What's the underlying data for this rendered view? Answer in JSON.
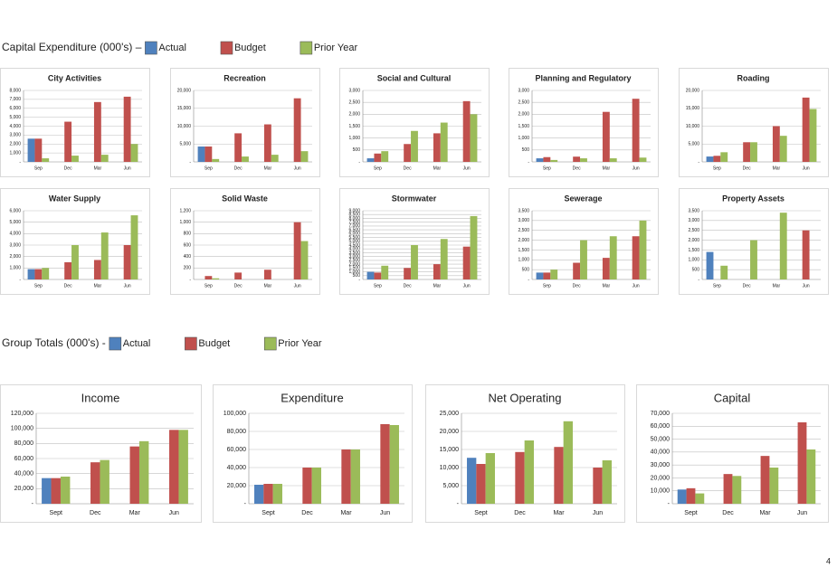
{
  "sections": [
    {
      "title": "Capital Expenditure (000's) –",
      "legend": [
        {
          "name": "Actual",
          "color": "#4f81bd"
        },
        {
          "name": "Budget",
          "color": "#c0504d"
        },
        {
          "name": "Prior Year",
          "color": "#9bbb59"
        }
      ]
    },
    {
      "title": "Group Totals (000's) -",
      "legend": [
        {
          "name": "Actual",
          "color": "#4f81bd"
        },
        {
          "name": "Budget",
          "color": "#c0504d"
        },
        {
          "name": "Prior Year",
          "color": "#9bbb59"
        }
      ]
    }
  ],
  "page_number": "4",
  "chart_data": [
    {
      "type": "bar",
      "title": "City Activities",
      "categories": [
        "Sep",
        "Dec",
        "Mar",
        "Jun"
      ],
      "ylim": [
        0,
        8000
      ],
      "yticks": [
        {
          "value": 0,
          "label": "-"
        },
        {
          "value": 1000,
          "label": "1,000"
        },
        {
          "value": 2000,
          "label": "2,000"
        },
        {
          "value": 3000,
          "label": "3,000"
        },
        {
          "value": 4000,
          "label": "4,000"
        },
        {
          "value": 5000,
          "label": "5,000"
        },
        {
          "value": 6000,
          "label": "6,000"
        },
        {
          "value": 7000,
          "label": "7,000"
        },
        {
          "value": 8000,
          "label": "8,000"
        }
      ],
      "series": [
        {
          "values": [
            2600,
            null,
            null,
            null
          ]
        },
        {
          "values": [
            2600,
            4500,
            6700,
            7300
          ]
        },
        {
          "values": [
            400,
            700,
            800,
            2000
          ]
        }
      ]
    },
    {
      "type": "bar",
      "title": "Recreation",
      "categories": [
        "Sep",
        "Dec",
        "Mar",
        "Jun"
      ],
      "ylim": [
        0,
        20000
      ],
      "yticks": [
        {
          "value": 0,
          "label": "-"
        },
        {
          "value": 5000,
          "label": "5,000"
        },
        {
          "value": 10000,
          "label": "10,000"
        },
        {
          "value": 15000,
          "label": "15,000"
        },
        {
          "value": 20000,
          "label": "20,000"
        }
      ],
      "series": [
        {
          "values": [
            4300,
            null,
            null,
            null
          ]
        },
        {
          "values": [
            4300,
            8000,
            10500,
            17800
          ]
        },
        {
          "values": [
            800,
            1500,
            2000,
            3000
          ]
        }
      ]
    },
    {
      "type": "bar",
      "title": "Social and Cultural",
      "categories": [
        "Sep",
        "Dec",
        "Mar",
        "Jun"
      ],
      "ylim": [
        0,
        3000
      ],
      "yticks": [
        {
          "value": 0,
          "label": "-"
        },
        500,
        {
          "value": 1000,
          "label": "1,000"
        },
        {
          "value": 1500,
          "label": "1,500"
        },
        {
          "value": 2000,
          "label": "2,000"
        },
        {
          "value": 2500,
          "label": "2,500"
        },
        {
          "value": 3000,
          "label": "3,000"
        }
      ],
      "series": [
        {
          "values": [
            150,
            null,
            null,
            null
          ]
        },
        {
          "values": [
            350,
            750,
            1200,
            2550
          ]
        },
        {
          "values": [
            450,
            1300,
            1650,
            2000
          ]
        }
      ]
    },
    {
      "type": "bar",
      "title": "Planning and Regulatory",
      "categories": [
        "Sep",
        "Dec",
        "Mar",
        "Jun"
      ],
      "ylim": [
        0,
        3000
      ],
      "yticks": [
        {
          "value": 0,
          "label": "-"
        },
        500,
        {
          "value": 1000,
          "label": "1,000"
        },
        {
          "value": 1500,
          "label": "1,500"
        },
        {
          "value": 2000,
          "label": "2,000"
        },
        {
          "value": 2500,
          "label": "2,500"
        },
        {
          "value": 3000,
          "label": "3,000"
        }
      ],
      "series": [
        {
          "values": [
            150,
            null,
            null,
            null
          ]
        },
        {
          "values": [
            200,
            220,
            2100,
            2650
          ]
        },
        {
          "values": [
            80,
            150,
            150,
            180
          ]
        }
      ]
    },
    {
      "type": "bar",
      "title": "Roading",
      "categories": [
        "Sep",
        "Dec",
        "Mar",
        "Jun"
      ],
      "ylim": [
        0,
        20000
      ],
      "yticks": [
        {
          "value": 0,
          "label": "-"
        },
        {
          "value": 5000,
          "label": "5,000"
        },
        {
          "value": 10000,
          "label": "10,000"
        },
        {
          "value": 15000,
          "label": "15,000"
        },
        {
          "value": 20000,
          "label": "20,000"
        }
      ],
      "series": [
        {
          "values": [
            1500,
            null,
            null,
            null
          ]
        },
        {
          "values": [
            1700,
            5500,
            10000,
            18000
          ]
        },
        {
          "values": [
            2700,
            5500,
            7300,
            14800
          ]
        }
      ]
    },
    {
      "type": "bar",
      "title": "Water Supply",
      "categories": [
        "Sep",
        "Dec",
        "Mar",
        "Jun"
      ],
      "ylim": [
        0,
        6000
      ],
      "yticks": [
        {
          "value": 0,
          "label": "-"
        },
        {
          "value": 1000,
          "label": "1,000"
        },
        {
          "value": 2000,
          "label": "2,000"
        },
        {
          "value": 3000,
          "label": "3,000"
        },
        {
          "value": 4000,
          "label": "4,000"
        },
        {
          "value": 5000,
          "label": "5,000"
        },
        {
          "value": 6000,
          "label": "6,000"
        }
      ],
      "series": [
        {
          "values": [
            900,
            null,
            null,
            null
          ]
        },
        {
          "values": [
            900,
            1500,
            1700,
            3000
          ]
        },
        {
          "values": [
            1000,
            3000,
            4100,
            5600
          ]
        }
      ]
    },
    {
      "type": "bar",
      "title": "Solid Waste",
      "categories": [
        "Sep",
        "Dec",
        "Mar",
        "Jun"
      ],
      "ylim": [
        0,
        1200
      ],
      "yticks": [
        {
          "value": 0,
          "label": "-"
        },
        200,
        400,
        600,
        800,
        {
          "value": 1000,
          "label": "1,000"
        },
        {
          "value": 1200,
          "label": "1,200"
        }
      ],
      "series": [
        {
          "values": [
            null,
            null,
            null,
            null
          ]
        },
        {
          "values": [
            60,
            120,
            170,
            1000
          ]
        },
        {
          "values": [
            20,
            null,
            null,
            670
          ]
        }
      ]
    },
    {
      "type": "bar",
      "title": "Stormwater",
      "categories": [
        "Sep",
        "Dec",
        "Mar",
        "Jun"
      ],
      "ylim": [
        0,
        9000
      ],
      "yticks": [
        {
          "value": 0,
          "label": "-"
        },
        500,
        {
          "value": 1000,
          "label": "1,000"
        },
        {
          "value": 1500,
          "label": "1,500"
        },
        {
          "value": 2000,
          "label": "2,000"
        },
        {
          "value": 2500,
          "label": "2,500"
        },
        {
          "value": 3000,
          "label": "3,000"
        },
        {
          "value": 3500,
          "label": "3,500"
        },
        {
          "value": 4000,
          "label": "4,000"
        },
        {
          "value": 4500,
          "label": "4,500"
        },
        {
          "value": 5000,
          "label": "5,000"
        },
        {
          "value": 5500,
          "label": "5,500"
        },
        {
          "value": 6000,
          "label": "6,000"
        },
        {
          "value": 6500,
          "label": "6,500"
        },
        {
          "value": 7000,
          "label": "7,000"
        },
        {
          "value": 7500,
          "label": "7,500"
        },
        {
          "value": 8000,
          "label": "8,000"
        },
        {
          "value": 8500,
          "label": "8,500"
        },
        {
          "value": 9000,
          "label": "9,000"
        }
      ],
      "series": [
        {
          "values": [
            1000,
            null,
            null,
            null
          ]
        },
        {
          "values": [
            900,
            1500,
            2000,
            4300
          ]
        },
        {
          "values": [
            1800,
            4500,
            5300,
            8300
          ]
        }
      ]
    },
    {
      "type": "bar",
      "title": "Sewerage",
      "categories": [
        "Sep",
        "Dec",
        "Mar",
        "Jun"
      ],
      "ylim": [
        0,
        3500
      ],
      "yticks": [
        {
          "value": 0,
          "label": "-"
        },
        500,
        {
          "value": 1000,
          "label": "1,000"
        },
        {
          "value": 1500,
          "label": "1,500"
        },
        {
          "value": 2000,
          "label": "2,000"
        },
        {
          "value": 2500,
          "label": "2,500"
        },
        {
          "value": 3000,
          "label": "3,000"
        },
        {
          "value": 3500,
          "label": "3,500"
        }
      ],
      "series": [
        {
          "values": [
            350,
            null,
            null,
            null
          ]
        },
        {
          "values": [
            350,
            850,
            1100,
            2200
          ]
        },
        {
          "values": [
            500,
            2000,
            2200,
            3000
          ]
        }
      ]
    },
    {
      "type": "bar",
      "title": "Property Assets",
      "categories": [
        "Sep",
        "Dec",
        "Mar",
        "Jun"
      ],
      "ylim": [
        0,
        3500
      ],
      "yticks": [
        {
          "value": 0,
          "label": "-"
        },
        500,
        {
          "value": 1000,
          "label": "1,000"
        },
        {
          "value": 1500,
          "label": "1,500"
        },
        {
          "value": 2000,
          "label": "2,000"
        },
        {
          "value": 2500,
          "label": "2,500"
        },
        {
          "value": 3000,
          "label": "3,000"
        },
        {
          "value": 3500,
          "label": "3,500"
        }
      ],
      "series": [
        {
          "values": [
            1400,
            null,
            null,
            null
          ]
        },
        {
          "values": [
            null,
            null,
            null,
            2500
          ]
        },
        {
          "values": [
            700,
            2000,
            3400,
            null
          ]
        }
      ]
    },
    {
      "type": "bar",
      "title": "Income",
      "categories": [
        "Sept",
        "Dec",
        "Mar",
        "Jun"
      ],
      "ylim": [
        0,
        120000
      ],
      "yticks": [
        {
          "value": 0,
          "label": "-"
        },
        {
          "value": 20000,
          "label": "20,000"
        },
        {
          "value": 40000,
          "label": "40,000"
        },
        {
          "value": 60000,
          "label": "60,000"
        },
        {
          "value": 80000,
          "label": "80,000"
        },
        {
          "value": 100000,
          "label": "100,000"
        },
        {
          "value": 120000,
          "label": "120,000"
        }
      ],
      "series": [
        {
          "values": [
            34000,
            null,
            null,
            null
          ]
        },
        {
          "values": [
            34000,
            55000,
            76000,
            98000
          ]
        },
        {
          "values": [
            36000,
            58000,
            83000,
            98000
          ]
        }
      ]
    },
    {
      "type": "bar",
      "title": "Expenditure",
      "categories": [
        "Sept",
        "Dec",
        "Mar",
        "Jun"
      ],
      "ylim": [
        0,
        100000
      ],
      "yticks": [
        {
          "value": 0,
          "label": "-"
        },
        {
          "value": 20000,
          "label": "20,000"
        },
        {
          "value": 40000,
          "label": "40,000"
        },
        {
          "value": 60000,
          "label": "60,000"
        },
        {
          "value": 80000,
          "label": "80,000"
        },
        {
          "value": 100000,
          "label": "100,000"
        }
      ],
      "series": [
        {
          "values": [
            21000,
            null,
            null,
            null
          ]
        },
        {
          "values": [
            22000,
            40000,
            60000,
            88000
          ]
        },
        {
          "values": [
            22000,
            40000,
            60000,
            87000
          ]
        }
      ]
    },
    {
      "type": "bar",
      "title": "Net Operating",
      "categories": [
        "Sept",
        "Dec",
        "Mar",
        "Jun"
      ],
      "ylim": [
        0,
        25000
      ],
      "yticks": [
        {
          "value": 0,
          "label": "-"
        },
        {
          "value": 5000,
          "label": "5,000"
        },
        {
          "value": 10000,
          "label": "10,000"
        },
        {
          "value": 15000,
          "label": "15,000"
        },
        {
          "value": 20000,
          "label": "20,000"
        },
        {
          "value": 25000,
          "label": "25,000"
        }
      ],
      "series": [
        {
          "values": [
            12700,
            null,
            null,
            null
          ]
        },
        {
          "values": [
            11000,
            14300,
            15700,
            10000
          ]
        },
        {
          "values": [
            14000,
            17500,
            22800,
            12000
          ]
        }
      ]
    },
    {
      "type": "bar",
      "title": "Capital",
      "categories": [
        "Sept",
        "Dec",
        "Mar",
        "Jun"
      ],
      "ylim": [
        0,
        70000
      ],
      "yticks": [
        {
          "value": 0,
          "label": "-"
        },
        {
          "value": 10000,
          "label": "10,000"
        },
        {
          "value": 20000,
          "label": "20,000"
        },
        {
          "value": 30000,
          "label": "30,000"
        },
        {
          "value": 40000,
          "label": "40,000"
        },
        {
          "value": 50000,
          "label": "50,000"
        },
        {
          "value": 60000,
          "label": "60,000"
        },
        {
          "value": 70000,
          "label": "70,000"
        }
      ],
      "series": [
        {
          "values": [
            11000,
            null,
            null,
            null
          ]
        },
        {
          "values": [
            12000,
            23000,
            37000,
            63000
          ]
        },
        {
          "values": [
            8000,
            21500,
            28000,
            42000
          ]
        }
      ]
    }
  ]
}
